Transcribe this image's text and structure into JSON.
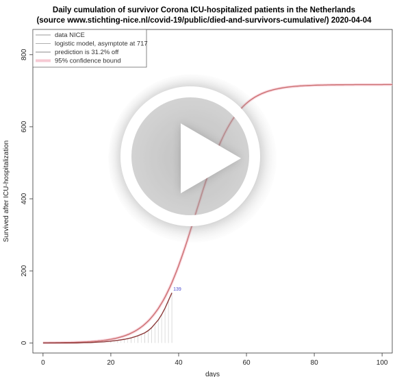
{
  "chart": {
    "title_line1": "Daily cumulation of survivor Corona ICU-hospitalized patients in the Netherlands",
    "title_line2": "(source www.stichting-nice.nl/covid-19/public/died-and-survivors-cumulative/)  2020-04-04"
  },
  "legend": {
    "items": [
      {
        "label": "data NICE",
        "color": "#999999"
      },
      {
        "label": "logistic model, asymptote at 717",
        "color": "#b0b0b0"
      },
      {
        "label": "prediction is 31.2% off",
        "color": "#888888"
      },
      {
        "label": "95% confidence bound",
        "color": "#f6c9d3"
      }
    ]
  },
  "video": {
    "icon": "play-icon"
  },
  "chart_data": {
    "type": "line",
    "title": "Daily cumulation of survivor Corona ICU-hospitalized patients in the Netherlands",
    "subtitle": "(source www.stichting-nice.nl/covid-19/public/died-and-survivors-cumulative/)  2020-04-04",
    "xlabel": "days",
    "ylabel": "Survived after ICU-hospitalization",
    "xlim": [
      -3,
      103
    ],
    "ylim": [
      -28,
      870
    ],
    "xticks": [
      0,
      20,
      40,
      60,
      80,
      100
    ],
    "yticks": [
      0,
      200,
      400,
      600,
      800
    ],
    "grid": false,
    "legend_position": "top-left",
    "series": [
      {
        "name": "data NICE",
        "color": "#999999",
        "x": [
          0,
          2,
          4,
          6,
          8,
          10,
          12,
          14,
          16,
          18,
          20,
          22,
          24,
          26,
          28,
          30,
          31,
          32,
          33,
          34,
          35,
          36,
          37,
          38
        ],
        "y": [
          0,
          0,
          0,
          0,
          0,
          0,
          1,
          1,
          2,
          3,
          5,
          7,
          10,
          14,
          20,
          28,
          34,
          42,
          53,
          64,
          79,
          97,
          118,
          139
        ]
      },
      {
        "name": "logistic model, asymptote at 717",
        "color": "#c96a6a",
        "asymptote": 717,
        "midpoint": 45,
        "rate": 0.17,
        "x_range": [
          0,
          103
        ]
      }
    ],
    "annotations": [
      {
        "text": "139",
        "x": 38,
        "y": 139
      }
    ]
  }
}
